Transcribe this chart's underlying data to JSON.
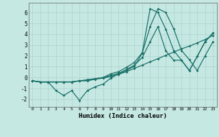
{
  "xlabel": "Humidex (Indice chaleur)",
  "background_color": "#c5e8e3",
  "grid_color": "#b0d4cf",
  "line_color": "#1a7068",
  "xlim": [
    -0.5,
    23.5
  ],
  "ylim": [
    -2.7,
    6.9
  ],
  "xticks": [
    0,
    1,
    2,
    3,
    4,
    5,
    6,
    7,
    8,
    9,
    10,
    11,
    12,
    13,
    14,
    15,
    16,
    17,
    18,
    19,
    20,
    21,
    22,
    23
  ],
  "yticks": [
    -2,
    -1,
    0,
    1,
    2,
    3,
    4,
    5,
    6
  ],
  "line1_x": [
    0,
    1,
    2,
    3,
    4,
    5,
    6,
    7,
    8,
    9,
    10,
    11,
    12,
    13,
    14,
    15,
    16,
    17,
    18,
    19,
    20,
    21,
    22,
    23
  ],
  "line1_y": [
    -0.3,
    -0.4,
    -0.4,
    -0.4,
    -0.4,
    -0.4,
    -0.3,
    -0.3,
    -0.15,
    -0.05,
    0.1,
    0.3,
    0.55,
    0.85,
    1.15,
    1.45,
    1.75,
    2.05,
    2.35,
    2.65,
    2.9,
    3.2,
    3.5,
    3.9
  ],
  "line2_x": [
    0,
    1,
    2,
    3,
    4,
    5,
    6,
    7,
    8,
    9,
    10,
    11,
    12,
    13,
    14,
    15,
    16,
    17,
    18,
    19,
    20,
    21,
    22,
    23
  ],
  "line2_y": [
    -0.3,
    -0.4,
    -0.4,
    -1.2,
    -1.65,
    -1.2,
    -2.1,
    -1.2,
    -0.85,
    -0.6,
    -0.05,
    0.35,
    0.65,
    1.05,
    2.25,
    4.7,
    6.35,
    6.0,
    4.5,
    2.5,
    1.65,
    0.65,
    2.0,
    3.3
  ],
  "line3_x": [
    0,
    1,
    2,
    3,
    4,
    5,
    6,
    7,
    8,
    9,
    10,
    11,
    12,
    13,
    14,
    15,
    16,
    17,
    18,
    19,
    20,
    21,
    22,
    23
  ],
  "line3_y": [
    -0.3,
    -0.4,
    -0.4,
    -0.4,
    -0.4,
    -0.4,
    -0.3,
    -0.2,
    -0.1,
    0.0,
    0.35,
    0.55,
    0.95,
    1.4,
    2.3,
    6.35,
    6.0,
    4.45,
    2.5,
    1.6,
    0.65,
    1.95,
    3.3,
    4.1
  ],
  "line4_x": [
    0,
    1,
    2,
    3,
    4,
    5,
    6,
    7,
    8,
    9,
    10,
    11,
    12,
    13,
    14,
    15,
    16,
    17,
    18,
    19,
    20,
    21,
    22,
    23
  ],
  "line4_y": [
    -0.3,
    -0.4,
    -0.4,
    -0.4,
    -0.4,
    -0.4,
    -0.3,
    -0.25,
    -0.1,
    0.0,
    0.2,
    0.4,
    0.75,
    1.15,
    1.85,
    3.3,
    4.7,
    2.45,
    1.6,
    1.6,
    0.65,
    1.95,
    3.3,
    4.1
  ],
  "line_width": 0.9,
  "marker_size": 2.0
}
